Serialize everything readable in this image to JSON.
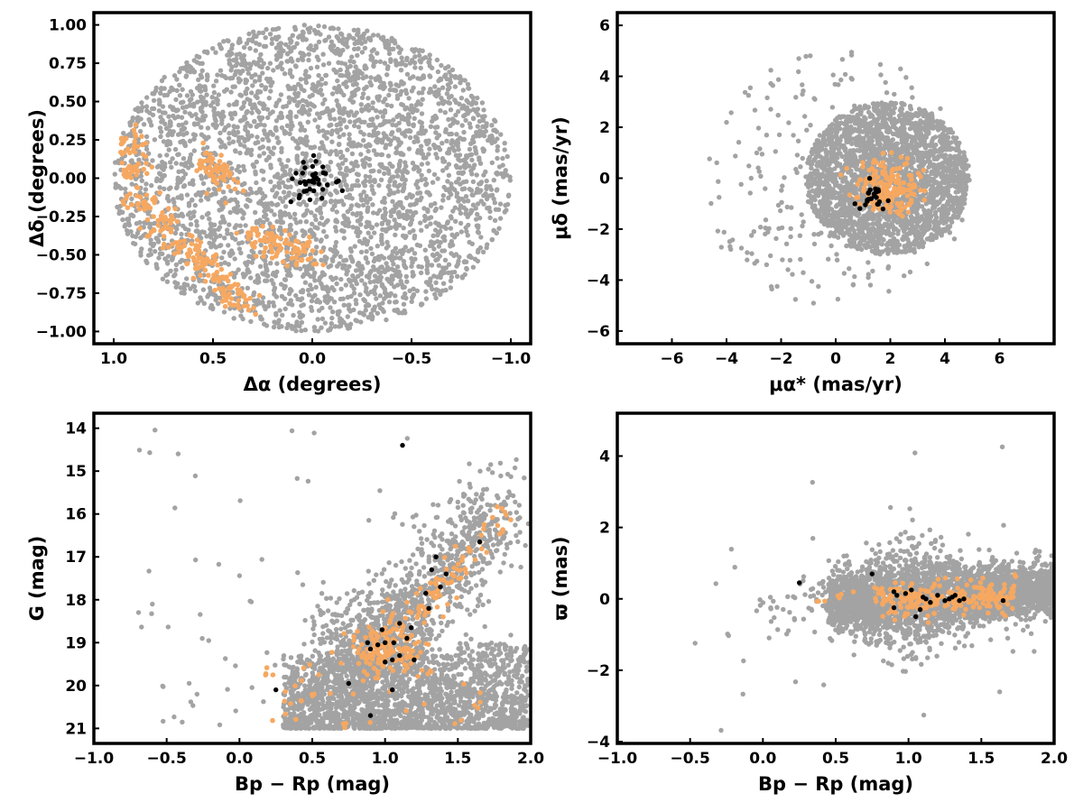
{
  "colors": {
    "field": "#a3a3a3",
    "stream": "#f6a861",
    "core": "#000000",
    "background": "#ffffff"
  },
  "chart_data": [
    {
      "type": "scatter",
      "xlabel": "Δα (degrees)",
      "ylabel": "Δδ (degrees)",
      "xlim": [
        1.1,
        -1.1
      ],
      "ylim": [
        -1.08,
        1.08
      ],
      "xticks": [
        1.0,
        0.5,
        0.0,
        -0.5,
        -1.0
      ],
      "xtick_labels": [
        "1.0",
        "0.5",
        "0.0",
        "−0.5",
        "−1.0"
      ],
      "yticks": [
        1.0,
        0.75,
        0.5,
        0.25,
        0.0,
        -0.25,
        -0.5,
        -0.75,
        -1.0
      ],
      "ytick_labels": [
        "1.00",
        "0.75",
        "0.50",
        "0.25",
        "0.00",
        "−0.25",
        "−0.50",
        "−0.75",
        "−1.00"
      ],
      "series": [
        {
          "role": "field",
          "distribution": "uniform disk",
          "center": [
            0.0,
            0.0
          ],
          "radius": 1.0,
          "count": 3400
        },
        {
          "role": "stream",
          "distribution": "band",
          "points": [
            [
              0.92,
              0.22
            ],
            [
              0.9,
              0.05
            ],
            [
              0.85,
              -0.15
            ],
            [
              0.75,
              -0.3
            ],
            [
              0.65,
              -0.45
            ],
            [
              0.55,
              -0.58
            ],
            [
              0.45,
              -0.68
            ],
            [
              0.38,
              -0.8
            ],
            [
              0.25,
              -0.38
            ],
            [
              0.15,
              -0.45
            ],
            [
              0.05,
              -0.5
            ],
            [
              0.5,
              0.1
            ],
            [
              0.46,
              0.0
            ]
          ]
        },
        {
          "role": "core",
          "distribution": "cluster",
          "center": [
            0.0,
            -0.02
          ],
          "spread": [
            0.05,
            0.06
          ],
          "count": 38
        }
      ]
    },
    {
      "type": "scatter",
      "xlabel": "μα* (mas/yr)",
      "ylabel": "μδ (mas/yr)",
      "xlim": [
        -8,
        8
      ],
      "ylim": [
        -6.5,
        6.5
      ],
      "xticks": [
        -6,
        -4,
        -2,
        0,
        2,
        4,
        6
      ],
      "xtick_labels": [
        "−6",
        "−4",
        "−2",
        "0",
        "2",
        "4",
        "6"
      ],
      "yticks": [
        6,
        4,
        2,
        0,
        -2,
        -4,
        -6
      ],
      "ytick_labels": [
        "6",
        "4",
        "2",
        "0",
        "−2",
        "−4",
        "−6"
      ],
      "series": [
        {
          "role": "field",
          "distribution": "offset disk",
          "center": [
            1.9,
            0.0
          ],
          "radius": 3.0,
          "count": 2400
        },
        {
          "role": "field",
          "distribution": "sparse halo",
          "center": [
            0.0,
            0.0
          ],
          "radius": 5.0,
          "count": 260
        },
        {
          "role": "stream",
          "distribution": "cluster",
          "center": [
            1.9,
            -0.3
          ],
          "spread": [
            0.6,
            0.5
          ],
          "count": 170
        },
        {
          "role": "core",
          "distribution": "cluster",
          "center": [
            1.5,
            -0.7
          ],
          "spread": [
            0.35,
            0.25
          ],
          "count": 25
        }
      ]
    },
    {
      "type": "scatter",
      "xlabel": "Bp − Rp (mag)",
      "ylabel": "G (mag)",
      "xlim": [
        -1.0,
        2.0
      ],
      "ylim": [
        13.65,
        21.35
      ],
      "invert_y": true,
      "xticks": [
        -1.0,
        -0.5,
        0.0,
        0.5,
        1.0,
        1.5,
        2.0
      ],
      "xtick_labels": [
        "−1.0",
        "−0.5",
        "0.0",
        "0.5",
        "1.0",
        "1.5",
        "2.0"
      ],
      "yticks": [
        21,
        20,
        19,
        18,
        17,
        16,
        15,
        14
      ],
      "ytick_labels": [
        "21",
        "20",
        "19",
        "18",
        "17",
        "16",
        "15",
        "14"
      ],
      "series": [
        {
          "role": "field",
          "distribution": "color-magnitude",
          "count": 3400
        },
        {
          "role": "stream",
          "distribution": "main sequence",
          "count": 260
        },
        {
          "role": "core",
          "points": [
            [
              0.25,
              20.1
            ],
            [
              0.75,
              19.95
            ],
            [
              0.9,
              20.7
            ],
            [
              1.05,
              20.1
            ],
            [
              0.88,
              19.0
            ],
            [
              0.9,
              19.15
            ],
            [
              0.95,
              19.05
            ],
            [
              1.0,
              19.0
            ],
            [
              1.0,
              19.45
            ],
            [
              1.05,
              19.4
            ],
            [
              1.1,
              19.3
            ],
            [
              1.15,
              18.9
            ],
            [
              1.2,
              19.4
            ],
            [
              1.1,
              18.55
            ],
            [
              1.18,
              18.65
            ],
            [
              1.3,
              18.2
            ],
            [
              1.28,
              17.85
            ],
            [
              1.32,
              17.3
            ],
            [
              1.35,
              17.0
            ],
            [
              1.38,
              17.7
            ],
            [
              1.42,
              17.4
            ],
            [
              1.65,
              16.65
            ],
            [
              1.12,
              14.4
            ],
            [
              1.06,
              19.0
            ],
            [
              0.98,
              18.7
            ]
          ]
        }
      ]
    },
    {
      "type": "scatter",
      "xlabel": "Bp − Rp (mag)",
      "ylabel": "ϖ (mas)",
      "xlim": [
        -1.0,
        2.0
      ],
      "ylim": [
        -4.05,
        5.2
      ],
      "xticks": [
        -1.0,
        -0.5,
        0.0,
        0.5,
        1.0,
        1.5,
        2.0
      ],
      "xtick_labels": [
        "−1.0",
        "−0.5",
        "0.0",
        "0.5",
        "1.0",
        "1.5",
        "2.0"
      ],
      "yticks": [
        4,
        2,
        0,
        -2,
        -4
      ],
      "ytick_labels": [
        "4",
        "2",
        "0",
        "−2",
        "−4"
      ],
      "series": [
        {
          "role": "field",
          "distribution": "parallax-color",
          "count": 3200
        },
        {
          "role": "stream",
          "distribution": "parallax-color",
          "count": 230
        },
        {
          "role": "core",
          "points": [
            [
              0.25,
              0.45
            ],
            [
              0.75,
              0.7
            ],
            [
              0.9,
              0.2
            ],
            [
              0.92,
              0.1
            ],
            [
              0.98,
              0.15
            ],
            [
              1.02,
              0.25
            ],
            [
              1.05,
              -0.5
            ],
            [
              1.08,
              -0.3
            ],
            [
              1.1,
              0.05
            ],
            [
              1.15,
              -0.1
            ],
            [
              1.2,
              0.1
            ],
            [
              1.25,
              -0.05
            ],
            [
              1.3,
              0.05
            ],
            [
              1.32,
              0.1
            ],
            [
              1.35,
              -0.05
            ],
            [
              1.38,
              0.0
            ],
            [
              1.65,
              -0.05
            ],
            [
              0.9,
              -0.25
            ],
            [
              1.12,
              0.0
            ],
            [
              1.28,
              0.0
            ]
          ]
        }
      ]
    }
  ]
}
